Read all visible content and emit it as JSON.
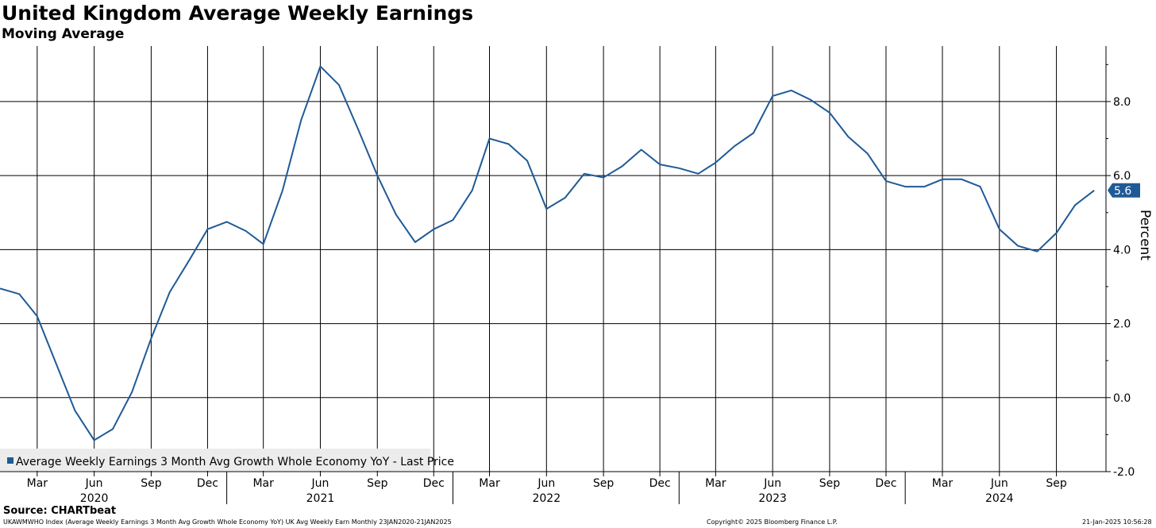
{
  "header": {
    "title": "United Kingdom Average Weekly Earnings",
    "subtitle": "Moving Average"
  },
  "chart_data": {
    "type": "line",
    "title": "United Kingdom Average Weekly Earnings",
    "subtitle": "Moving Average",
    "ylabel": "Percent",
    "ylim": [
      -2.0,
      9.5
    ],
    "yticks": [
      "8.0",
      "6.0",
      "4.0",
      "2.0",
      "0.0",
      "-2.0"
    ],
    "ytick_values": [
      8.0,
      6.0,
      4.0,
      2.0,
      0.0,
      -2.0
    ],
    "xlim": [
      "2020-01-01",
      "2024-11-20"
    ],
    "month_ticks": [
      {
        "label": "Mar",
        "date": "2020-03-01"
      },
      {
        "label": "Jun",
        "date": "2020-06-01"
      },
      {
        "label": "Sep",
        "date": "2020-09-01"
      },
      {
        "label": "Dec",
        "date": "2020-12-01"
      },
      {
        "label": "Mar",
        "date": "2021-03-01"
      },
      {
        "label": "Jun",
        "date": "2021-06-01"
      },
      {
        "label": "Sep",
        "date": "2021-09-01"
      },
      {
        "label": "Dec",
        "date": "2021-12-01"
      },
      {
        "label": "Mar",
        "date": "2022-03-01"
      },
      {
        "label": "Jun",
        "date": "2022-06-01"
      },
      {
        "label": "Sep",
        "date": "2022-09-01"
      },
      {
        "label": "Dec",
        "date": "2022-12-01"
      },
      {
        "label": "Mar",
        "date": "2023-03-01"
      },
      {
        "label": "Jun",
        "date": "2023-06-01"
      },
      {
        "label": "Sep",
        "date": "2023-09-01"
      },
      {
        "label": "Dec",
        "date": "2023-12-01"
      },
      {
        "label": "Mar",
        "date": "2024-03-01"
      },
      {
        "label": "Jun",
        "date": "2024-06-01"
      },
      {
        "label": "Sep",
        "date": "2024-09-01"
      }
    ],
    "year_labels": [
      {
        "label": "2020",
        "date": "2020-06-01"
      },
      {
        "label": "2021",
        "date": "2021-06-01"
      },
      {
        "label": "2022",
        "date": "2022-06-01"
      },
      {
        "label": "2023",
        "date": "2023-06-01"
      },
      {
        "label": "2024",
        "date": "2024-06-01"
      }
    ],
    "year_separators": [
      "2021-01-01",
      "2022-01-01",
      "2023-01-01",
      "2024-01-01"
    ],
    "grid": true,
    "legend_position": "bottom-left",
    "series": [
      {
        "name": "Average Weekly Earnings 3 Month Avg Growth Whole Economy YoY - Last Price",
        "color": "#1f5a96",
        "last_value_label": "5.6",
        "points": [
          [
            "2020-01-01",
            2.95
          ],
          [
            "2020-02-01",
            2.8
          ],
          [
            "2020-03-01",
            2.2
          ],
          [
            "2020-04-01",
            0.9
          ],
          [
            "2020-05-01",
            -0.35
          ],
          [
            "2020-06-01",
            -1.15
          ],
          [
            "2020-07-01",
            -0.85
          ],
          [
            "2020-08-01",
            0.15
          ],
          [
            "2020-09-01",
            1.6
          ],
          [
            "2020-10-01",
            2.85
          ],
          [
            "2020-11-01",
            3.7
          ],
          [
            "2020-12-01",
            4.55
          ],
          [
            "2021-01-01",
            4.75
          ],
          [
            "2021-02-01",
            4.5
          ],
          [
            "2021-03-01",
            4.15
          ],
          [
            "2021-04-01",
            5.6
          ],
          [
            "2021-05-01",
            7.5
          ],
          [
            "2021-06-01",
            8.95
          ],
          [
            "2021-07-01",
            8.45
          ],
          [
            "2021-08-01",
            7.25
          ],
          [
            "2021-09-01",
            6.0
          ],
          [
            "2021-10-01",
            4.95
          ],
          [
            "2021-11-01",
            4.2
          ],
          [
            "2021-12-01",
            4.55
          ],
          [
            "2022-01-01",
            4.8
          ],
          [
            "2022-02-01",
            5.6
          ],
          [
            "2022-03-01",
            7.0
          ],
          [
            "2022-04-01",
            6.85
          ],
          [
            "2022-05-01",
            6.4
          ],
          [
            "2022-06-01",
            5.1
          ],
          [
            "2022-07-01",
            5.4
          ],
          [
            "2022-08-01",
            6.05
          ],
          [
            "2022-09-01",
            5.95
          ],
          [
            "2022-10-01",
            6.25
          ],
          [
            "2022-11-01",
            6.7
          ],
          [
            "2022-12-01",
            6.3
          ],
          [
            "2023-01-01",
            6.2
          ],
          [
            "2023-02-01",
            6.05
          ],
          [
            "2023-03-01",
            6.35
          ],
          [
            "2023-04-01",
            6.8
          ],
          [
            "2023-05-01",
            7.15
          ],
          [
            "2023-06-01",
            8.15
          ],
          [
            "2023-07-01",
            8.3
          ],
          [
            "2023-08-01",
            8.05
          ],
          [
            "2023-09-01",
            7.7
          ],
          [
            "2023-10-01",
            7.05
          ],
          [
            "2023-11-01",
            6.6
          ],
          [
            "2023-12-01",
            5.85
          ],
          [
            "2024-01-01",
            5.7
          ],
          [
            "2024-02-01",
            5.7
          ],
          [
            "2024-03-01",
            5.9
          ],
          [
            "2024-04-01",
            5.9
          ],
          [
            "2024-05-01",
            5.7
          ],
          [
            "2024-06-01",
            4.55
          ],
          [
            "2024-07-01",
            4.1
          ],
          [
            "2024-08-01",
            3.95
          ],
          [
            "2024-09-01",
            4.45
          ],
          [
            "2024-10-01",
            5.2
          ],
          [
            "2024-11-01",
            5.6
          ]
        ]
      }
    ]
  },
  "footer": {
    "source": "Source: CHARTbeat",
    "ticker_line": "UKAWMWHO Index (Average Weekly Earnings 3 Month Avg Growth Whole Economy YoY) UK Avg Weekly Earn  Monthly 23JAN2020-21JAN2025",
    "copyright": "Copyright© 2025 Bloomberg Finance L.P.",
    "timestamp": "21-Jan-2025 10:56:28"
  }
}
